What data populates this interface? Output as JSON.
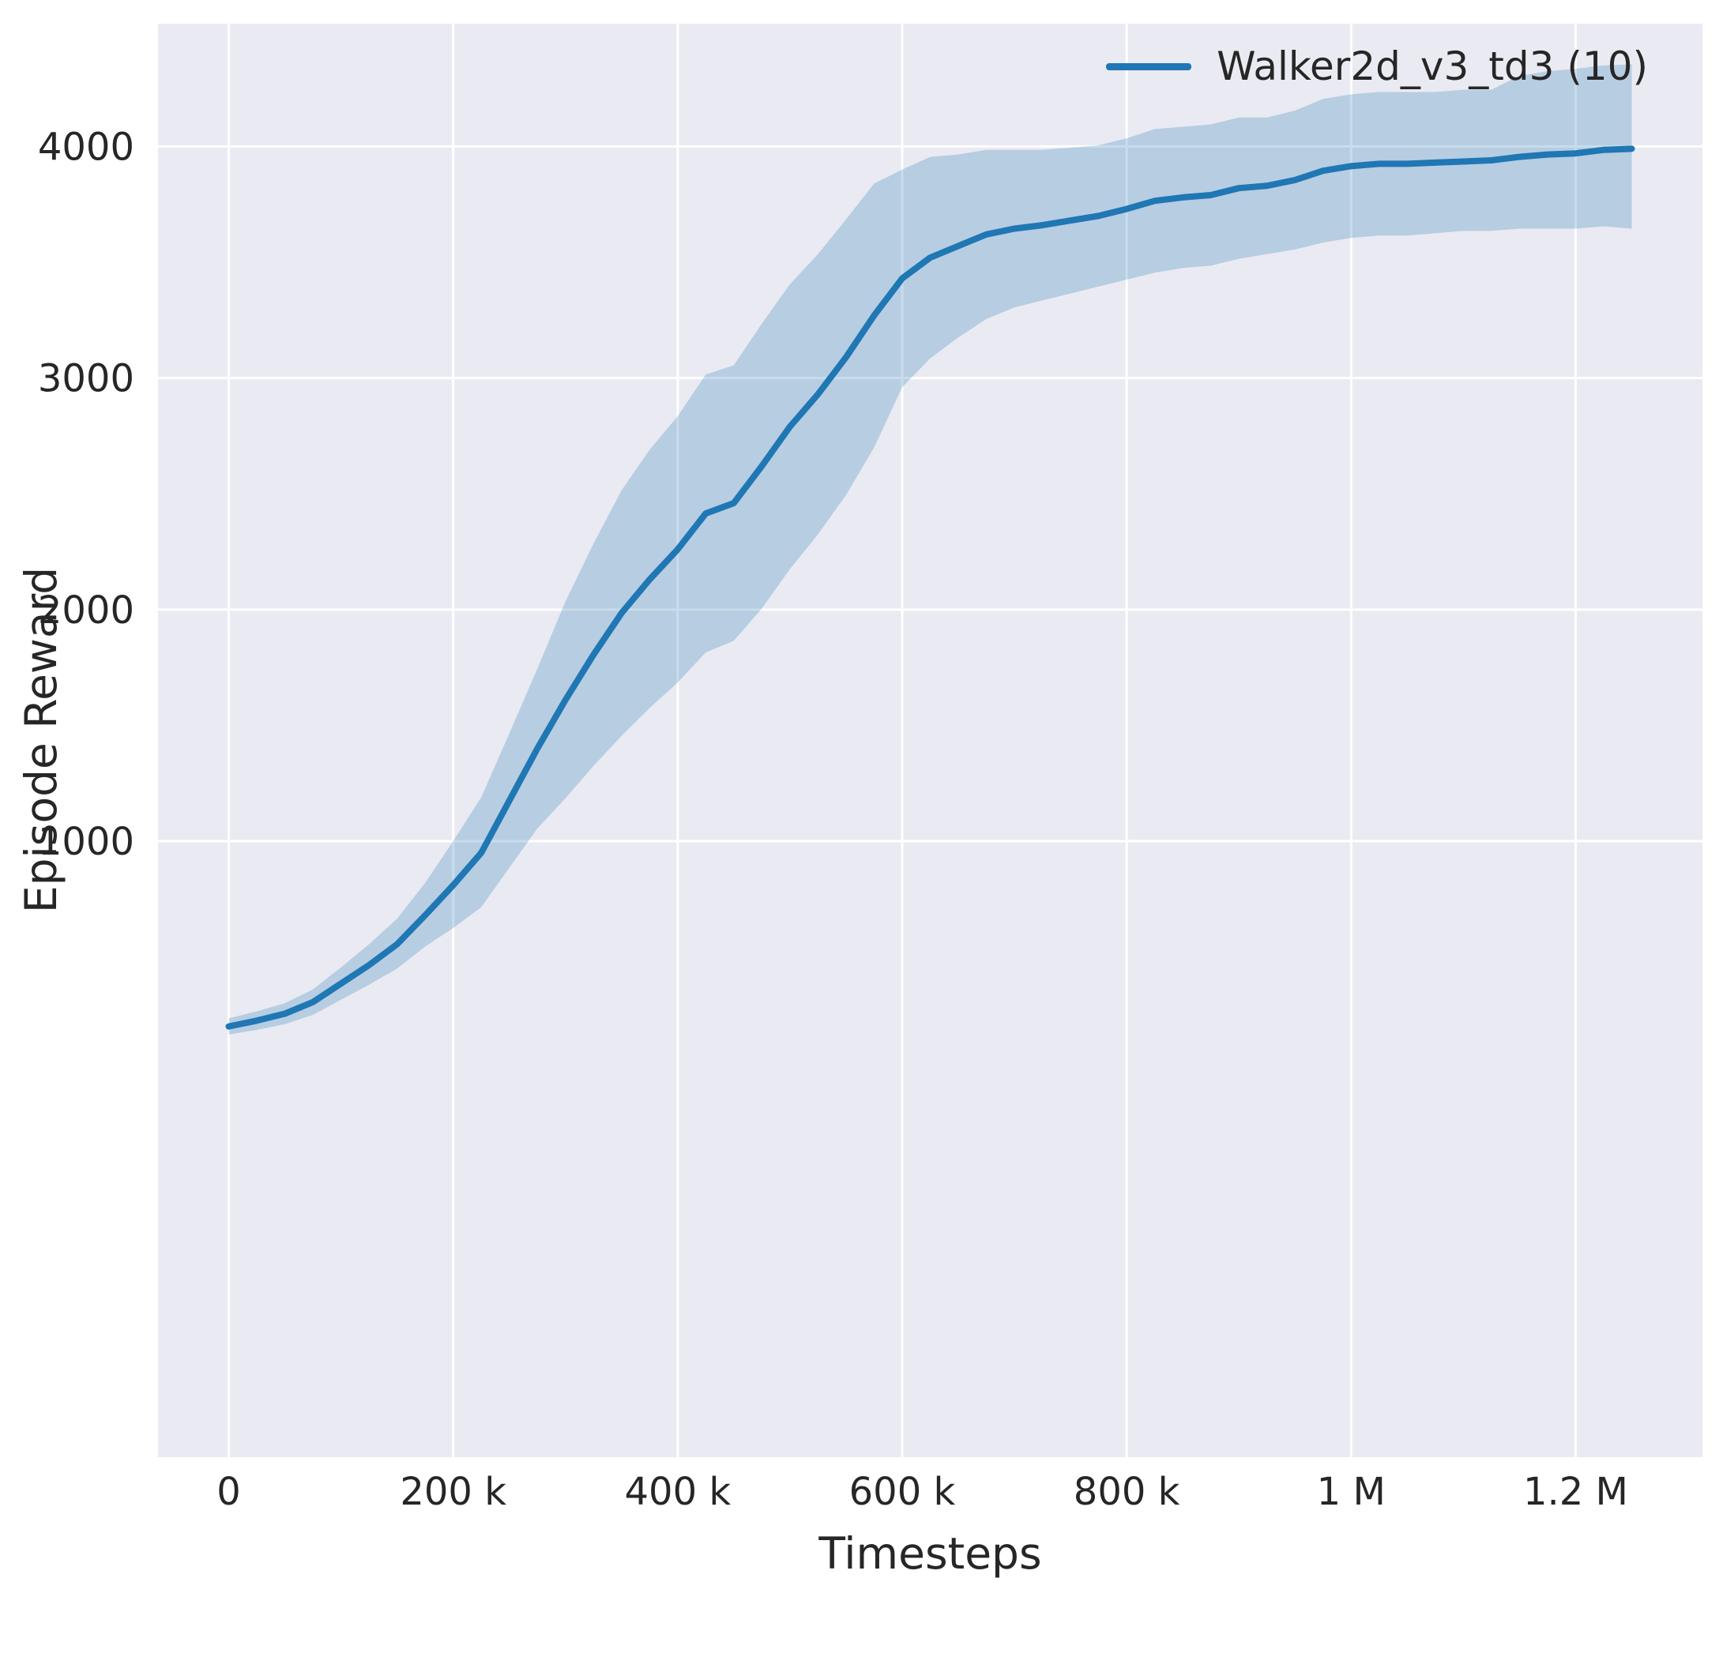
{
  "chart_data": {
    "type": "line",
    "title": "",
    "xlabel": "Timesteps",
    "ylabel": "Episode Reward",
    "grid": true,
    "legend_position": "upper right",
    "xlim": [
      -63000,
      1313000
    ],
    "ylim": [
      -1660,
      4530
    ],
    "x_ticks": [
      {
        "value": 0,
        "label": "0"
      },
      {
        "value": 200000,
        "label": "200 k"
      },
      {
        "value": 400000,
        "label": "400 k"
      },
      {
        "value": 600000,
        "label": "600 k"
      },
      {
        "value": 800000,
        "label": "800 k"
      },
      {
        "value": 1000000,
        "label": "1 M"
      },
      {
        "value": 1200000,
        "label": "1.2 M"
      }
    ],
    "y_ticks": [
      {
        "value": 1000,
        "label": "1000"
      },
      {
        "value": 2000,
        "label": "2000"
      },
      {
        "value": 3000,
        "label": "3000"
      },
      {
        "value": 4000,
        "label": "4000"
      }
    ],
    "series": [
      {
        "name": "Walker2d_v3_td3 (10)",
        "x": [
          0,
          25000,
          50000,
          75000,
          100000,
          125000,
          150000,
          175000,
          200000,
          225000,
          250000,
          275000,
          300000,
          325000,
          350000,
          375000,
          400000,
          425000,
          450000,
          475000,
          500000,
          525000,
          550000,
          575000,
          600000,
          625000,
          650000,
          675000,
          700000,
          725000,
          750000,
          775000,
          800000,
          825000,
          850000,
          875000,
          900000,
          925000,
          950000,
          975000,
          1000000,
          1025000,
          1050000,
          1075000,
          1100000,
          1125000,
          1150000,
          1175000,
          1200000,
          1225000,
          1250000
        ],
        "mean": [
          200,
          225,
          255,
          305,
          385,
          465,
          555,
          680,
          810,
          950,
          1175,
          1400,
          1610,
          1805,
          1985,
          2130,
          2260,
          2415,
          2460,
          2620,
          2790,
          2930,
          3090,
          3270,
          3430,
          3520,
          3570,
          3620,
          3645,
          3660,
          3680,
          3700,
          3730,
          3765,
          3780,
          3790,
          3820,
          3830,
          3855,
          3895,
          3915,
          3925,
          3925,
          3930,
          3935,
          3940,
          3955,
          3965,
          3970,
          3985,
          3990
        ],
        "lower": [
          165,
          185,
          210,
          250,
          315,
          380,
          450,
          545,
          625,
          715,
          885,
          1055,
          1185,
          1325,
          1455,
          1575,
          1685,
          1815,
          1865,
          2005,
          2175,
          2325,
          2495,
          2700,
          2960,
          3085,
          3175,
          3255,
          3305,
          3335,
          3365,
          3395,
          3425,
          3455,
          3475,
          3485,
          3515,
          3535,
          3555,
          3585,
          3605,
          3615,
          3615,
          3625,
          3635,
          3635,
          3645,
          3645,
          3645,
          3655,
          3645
        ],
        "upper": [
          235,
          265,
          300,
          360,
          455,
          555,
          665,
          820,
          1000,
          1190,
          1465,
          1745,
          2035,
          2285,
          2515,
          2690,
          2835,
          3015,
          3055,
          3235,
          3405,
          3535,
          3685,
          3840,
          3900,
          3955,
          3965,
          3985,
          3985,
          3985,
          3995,
          4005,
          4035,
          4075,
          4085,
          4095,
          4125,
          4125,
          4155,
          4205,
          4225,
          4235,
          4235,
          4235,
          4245,
          4245,
          4305,
          4325,
          4335,
          4350,
          4355
        ]
      }
    ],
    "colors": {
      "line": "#1f77b4",
      "band_alpha": 0.25,
      "plot_bg": "#eaeaf2",
      "grid": "#ffffff",
      "text": "#262626"
    }
  }
}
